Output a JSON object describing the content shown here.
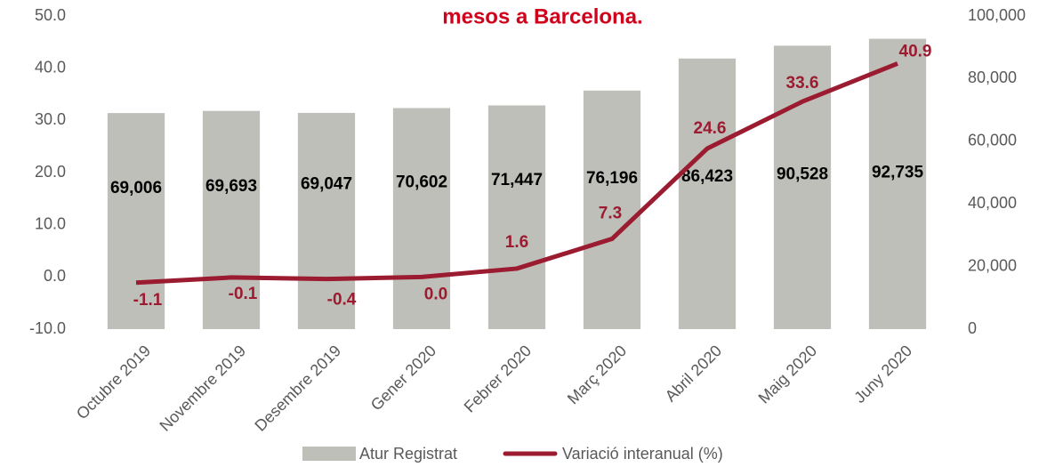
{
  "chart_data": {
    "type": "bar+line",
    "title": "mesos a Barcelona.",
    "categories": [
      "Octubre 2019",
      "Novembre 2019",
      "Desembre 2019",
      "Gener 2020",
      "Febrer 2020",
      "Març 2020",
      "Abril 2020",
      "Maig 2020",
      "Juny 2020"
    ],
    "series": [
      {
        "name": "Atur Registrat",
        "type": "bar",
        "axis": "y2",
        "color": "#bfbfb9",
        "values": [
          69006,
          69693,
          69047,
          70602,
          71447,
          76196,
          86423,
          90528,
          92735
        ],
        "value_labels": [
          "69,006",
          "69,693",
          "69,047",
          "70,602",
          "71,447",
          "76,196",
          "86,423",
          "90,528",
          "92,735"
        ]
      },
      {
        "name": "Variació interanual (%)",
        "type": "line",
        "axis": "y",
        "color": "#9b1b30",
        "values": [
          -1.1,
          -0.1,
          -0.4,
          0.0,
          1.6,
          7.3,
          24.6,
          33.6,
          40.9
        ],
        "value_labels": [
          "-1.1",
          "-0.1",
          "-0.4",
          "0.0",
          "1.6",
          "7.3",
          "24.6",
          "33.6",
          "40.9"
        ]
      }
    ],
    "ylim": [
      -10,
      50
    ],
    "yticks": [
      {
        "value": -10,
        "label": "-10.0"
      },
      {
        "value": 0,
        "label": "0.0"
      },
      {
        "value": 10,
        "label": "10.0"
      },
      {
        "value": 20,
        "label": "20.0"
      },
      {
        "value": 30,
        "label": "30.0"
      },
      {
        "value": 40,
        "label": "40.0"
      },
      {
        "value": 50,
        "label": "50.0"
      }
    ],
    "y2lim": [
      0,
      100000
    ],
    "y2ticks": [
      0,
      {
        "value": 20000,
        "label": "20,000"
      },
      {
        "value": 40000,
        "label": "40,000"
      },
      {
        "value": 60000,
        "label": "60,000"
      },
      {
        "value": 80000,
        "label": "80,000"
      },
      {
        "value": 100000,
        "label": "100,000"
      }
    ],
    "grid": false,
    "legend": "bottom"
  }
}
